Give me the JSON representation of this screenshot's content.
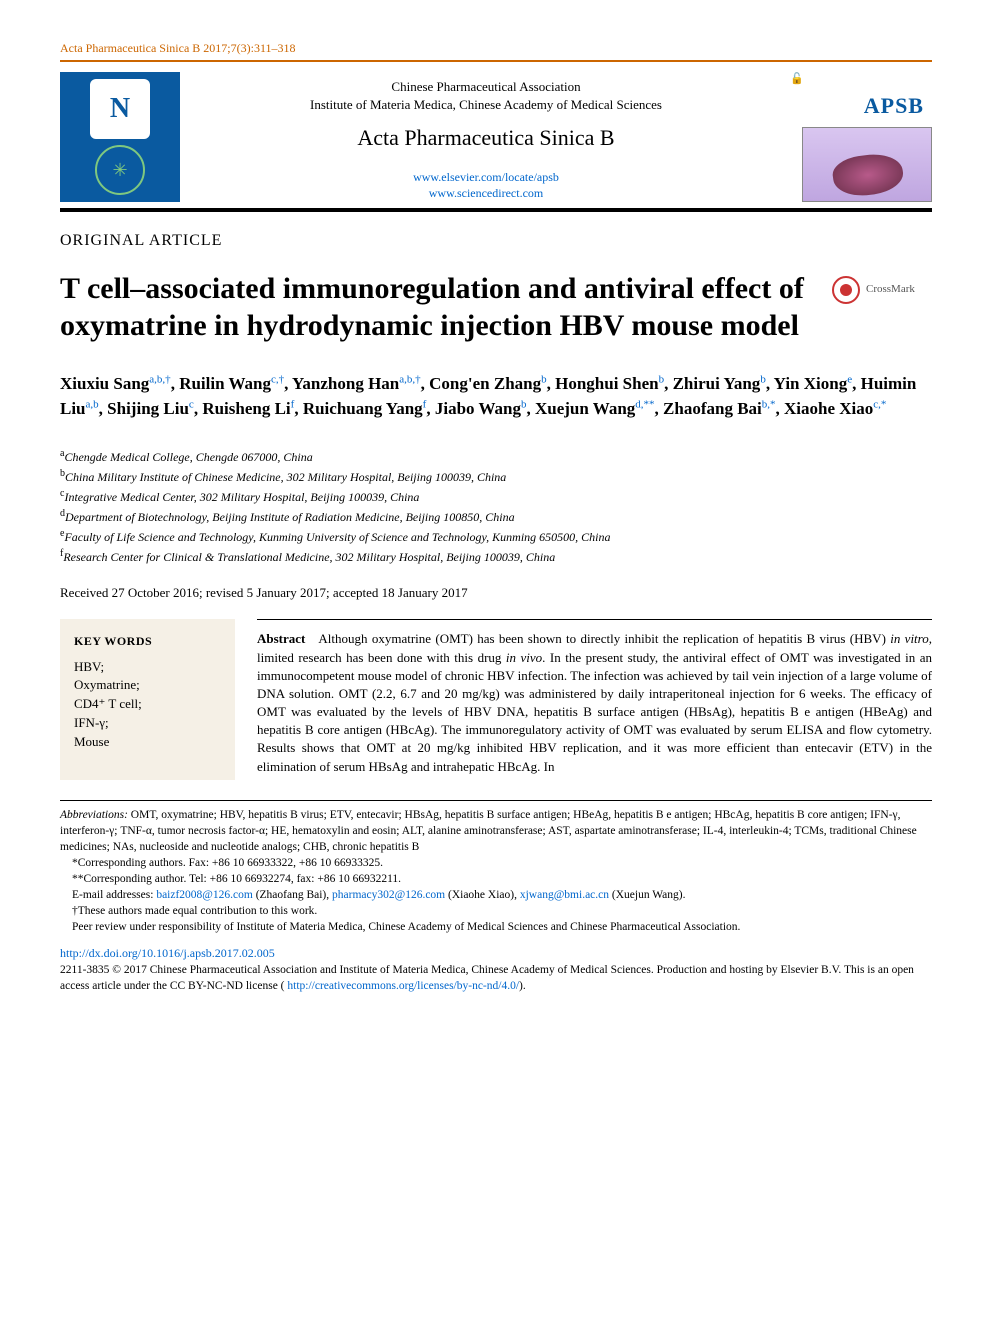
{
  "colors": {
    "accent_orange": "#cc6600",
    "link_blue": "#0066cc",
    "logo_blue": "#0a5aa0",
    "text": "#000000",
    "kw_bg": "#f5f0e6",
    "crossmark_red": "#cc3333"
  },
  "running_head": "Acta Pharmaceutica Sinica B 2017;7(3):311–318",
  "masthead": {
    "association": "Chinese Pharmaceutical Association",
    "institute": "Institute of Materia Medica, Chinese Academy of Medical Sciences",
    "journal_title": "Acta Pharmaceutica Sinica B",
    "link1": "www.elsevier.com/locate/apsb",
    "link2": "www.sciencedirect.com",
    "cover_label": "APSB",
    "open_icon_glyph": "🔓"
  },
  "article_type": "ORIGINAL ARTICLE",
  "title": "T cell–associated immunoregulation and antiviral effect of oxymatrine in hydrodynamic injection HBV mouse model",
  "crossmark_label": "CrossMark",
  "authors_html": "Xiuxiu Sang<sup>a,b,†</sup>, Ruilin Wang<sup>c,†</sup>, Yanzhong Han<sup>a,b,†</sup>, Cong'en Zhang<sup>b</sup>, Honghui Shen<sup>b</sup>, Zhirui Yang<sup>b</sup>, Yin Xiong<sup>e</sup>, Huimin Liu<sup>a,b</sup>, Shijing Liu<sup>c</sup>, Ruisheng Li<sup>f</sup>, Ruichuang Yang<sup>f</sup>, Jiabo Wang<sup>b</sup>, Xuejun Wang<sup>d,**</sup>, Zhaofang Bai<sup>b,*</sup>, Xiaohe Xiao<sup>c,*</sup>",
  "affiliations": [
    {
      "sup": "a",
      "text": "Chengde Medical College, Chengde 067000, China"
    },
    {
      "sup": "b",
      "text": "China Military Institute of Chinese Medicine, 302 Military Hospital, Beijing 100039, China"
    },
    {
      "sup": "c",
      "text": "Integrative Medical Center, 302 Military Hospital, Beijing 100039, China"
    },
    {
      "sup": "d",
      "text": "Department of Biotechnology, Beijing Institute of Radiation Medicine, Beijing 100850, China"
    },
    {
      "sup": "e",
      "text": "Faculty of Life Science and Technology, Kunming University of Science and Technology, Kunming 650500, China"
    },
    {
      "sup": "f",
      "text": "Research Center for Clinical & Translational Medicine, 302 Military Hospital, Beijing 100039, China"
    }
  ],
  "dates": "Received 27 October 2016; revised 5 January 2017; accepted 18 January 2017",
  "keywords": {
    "heading": "KEY WORDS",
    "items": [
      "HBV;",
      "Oxymatrine;",
      "CD4⁺ T cell;",
      "IFN-γ;",
      "Mouse"
    ]
  },
  "abstract": {
    "label": "Abstract",
    "text": "Although oxymatrine (OMT) has been shown to directly inhibit the replication of hepatitis B virus (HBV) in vitro, limited research has been done with this drug in vivo. In the present study, the antiviral effect of OMT was investigated in an immunocompetent mouse model of chronic HBV infection. The infection was achieved by tail vein injection of a large volume of DNA solution. OMT (2.2, 6.7 and 20 mg/kg) was administered by daily intraperitoneal injection for 6 weeks. The efficacy of OMT was evaluated by the levels of HBV DNA, hepatitis B surface antigen (HBsAg), hepatitis B e antigen (HBeAg) and hepatitis B core antigen (HBcAg). The immunoregulatory activity of OMT was evaluated by serum ELISA and flow cytometry. Results shows that OMT at 20 mg/kg inhibited HBV replication, and it was more efficient than entecavir (ETV) in the elimination of serum HBsAg and intrahepatic HBcAg. In"
  },
  "footnotes": {
    "abbreviations_label": "Abbreviations:",
    "abbreviations": "OMT, oxymatrine; HBV, hepatitis B virus; ETV, entecavir; HBsAg, hepatitis B surface antigen; HBeAg, hepatitis B e antigen; HBcAg, hepatitis B core antigen; IFN-γ, interferon-γ; TNF-α, tumor necrosis factor-α; HE, hematoxylin and eosin; ALT, alanine aminotransferase; AST, aspartate aminotransferase; IL-4, interleukin-4; TCMs, traditional Chinese medicines; NAs, nucleoside and nucleotide analogs; CHB, chronic hepatitis B",
    "corr1": "*Corresponding authors. Fax: +86 10 66933322, +86 10 66933325.",
    "corr2": "**Corresponding author. Tel: +86 10 66932274, fax: +86 10 66932211.",
    "emails_prefix": "E-mail addresses: ",
    "email1": "baizf2008@126.com",
    "email1_name": " (Zhaofang Bai), ",
    "email2": "pharmacy302@126.com",
    "email2_name": " (Xiaohe Xiao), ",
    "email3": "xjwang@bmi.ac.cn",
    "email3_name": " (Xuejun Wang).",
    "equal": "†These authors made equal contribution to this work.",
    "peer": "Peer review under responsibility of Institute of Materia Medica, Chinese Academy of Medical Sciences and Chinese Pharmaceutical Association."
  },
  "doi": "http://dx.doi.org/10.1016/j.apsb.2017.02.005",
  "copyright": {
    "line": "2211-3835 © 2017 Chinese Pharmaceutical Association and Institute of Materia Medica, Chinese Academy of Medical Sciences. Production and hosting by Elsevier B.V. This is an open access article under the CC BY-NC-ND license (",
    "license_url": "http://creativecommons.org/licenses/by-nc-nd/4.0/",
    "close": ")."
  }
}
